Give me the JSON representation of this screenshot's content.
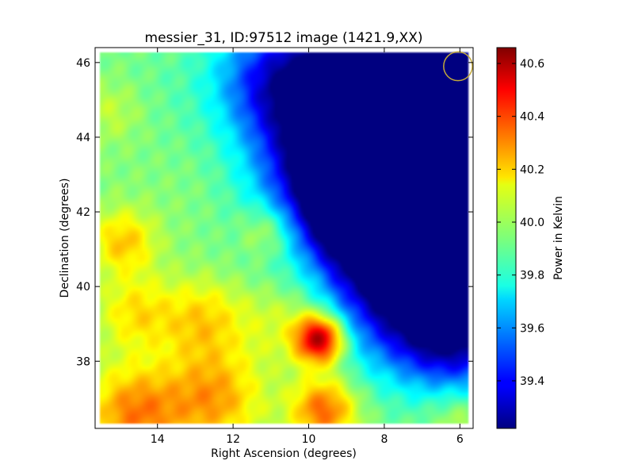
{
  "chart_data": {
    "type": "heatmap",
    "title": "messier_31, ID:97512 image (1421.9,XX)",
    "xlabel": "Right Ascension (degrees)",
    "ylabel": "Declination (degrees)",
    "xlim": [
      15.65,
      5.65
    ],
    "ylim": [
      36.2,
      46.4
    ],
    "x_ticks": [
      14,
      12,
      10,
      8,
      6
    ],
    "y_ticks": [
      38,
      40,
      42,
      44,
      46
    ],
    "grid": false,
    "colormap": "jet",
    "colorbar": {
      "label": "Power in Kelvin",
      "range": [
        39.22,
        40.66
      ],
      "ticks": [
        39.4,
        39.6,
        39.8,
        40.0,
        40.2,
        40.4,
        40.6
      ]
    },
    "beam_circle": {
      "ra": 6.05,
      "dec": 45.9,
      "radius_deg": 0.38,
      "color": "#c2a83c"
    },
    "map_extent": {
      "ra": [
        15.55,
        5.75
      ],
      "dec": [
        36.3,
        46.25
      ]
    },
    "background_k": 39.95,
    "field": [
      {
        "ra": 6.2,
        "dec": 44.0,
        "k": 39.3,
        "sigma": 2.8
      },
      {
        "ra": 6.6,
        "dec": 41.2,
        "k": 39.35,
        "sigma": 1.8
      },
      {
        "ra": 7.6,
        "dec": 44.5,
        "k": 39.45,
        "sigma": 1.8
      },
      {
        "ra": 7.8,
        "dec": 42.0,
        "k": 39.5,
        "sigma": 1.6
      },
      {
        "ra": 9.4,
        "dec": 45.0,
        "k": 39.45,
        "sigma": 1.4
      },
      {
        "ra": 9.0,
        "dec": 42.5,
        "k": 39.6,
        "sigma": 1.3
      },
      {
        "ra": 7.3,
        "dec": 39.2,
        "k": 39.68,
        "sigma": 1.1
      },
      {
        "ra": 6.0,
        "dec": 38.5,
        "k": 39.55,
        "sigma": 1.0
      },
      {
        "ra": 11.2,
        "dec": 45.6,
        "k": 39.7,
        "sigma": 1.0
      },
      {
        "ra": 14.2,
        "dec": 45.3,
        "k": 39.92,
        "sigma": 1.2
      },
      {
        "ra": 15.2,
        "dec": 44.7,
        "k": 40.05,
        "sigma": 0.6
      },
      {
        "ra": 9.7,
        "dec": 38.6,
        "k": 40.62,
        "sigma": 0.45
      },
      {
        "ra": 11.0,
        "dec": 41.5,
        "k": 40.2,
        "sigma": 0.55
      },
      {
        "ra": 14.9,
        "dec": 41.2,
        "k": 40.2,
        "sigma": 0.6
      },
      {
        "ra": 12.8,
        "dec": 39.1,
        "k": 40.18,
        "sigma": 0.8
      },
      {
        "ra": 14.6,
        "dec": 39.3,
        "k": 40.15,
        "sigma": 0.7
      },
      {
        "ra": 12.5,
        "dec": 37.0,
        "k": 40.25,
        "sigma": 0.9
      },
      {
        "ra": 9.6,
        "dec": 36.7,
        "k": 40.35,
        "sigma": 0.6
      },
      {
        "ra": 14.6,
        "dec": 36.6,
        "k": 40.3,
        "sigma": 0.9
      },
      {
        "ra": 10.5,
        "dec": 39.2,
        "k": 40.12,
        "sigma": 0.9
      },
      {
        "ra": 6.0,
        "dec": 36.6,
        "k": 40.08,
        "sigma": 0.6
      },
      {
        "ra": 12.5,
        "dec": 42.5,
        "k": 39.98,
        "sigma": 1.2
      },
      {
        "ra": 10.0,
        "dec": 40.6,
        "k": 40.02,
        "sigma": 0.6
      }
    ]
  }
}
